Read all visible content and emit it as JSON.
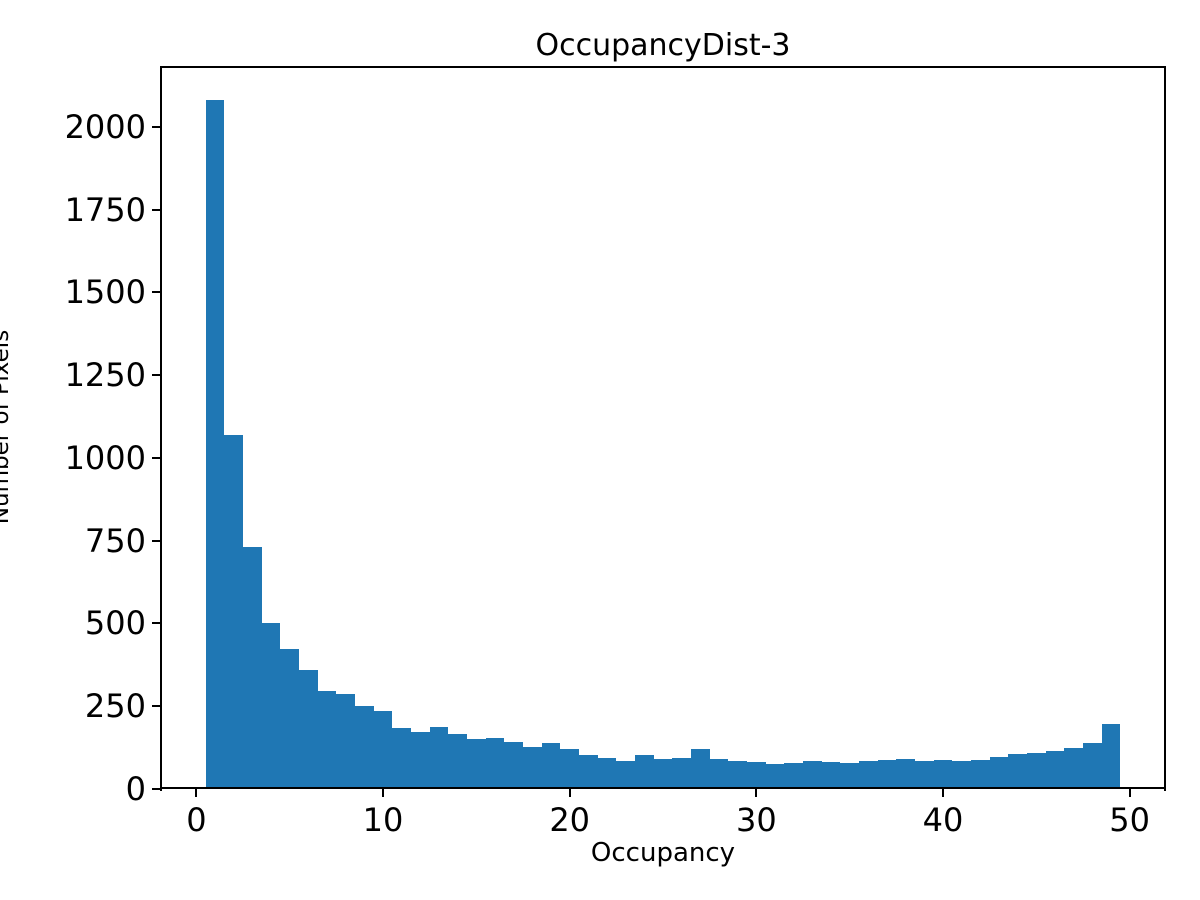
{
  "figure": {
    "background": "#ffffff",
    "text_color": "#000000"
  },
  "chart_data": {
    "type": "bar",
    "subtype": "histogram",
    "title": "OccupancyDist-3",
    "xlabel": "Occupancy",
    "ylabel": "Number of Pixels",
    "bar_color": "#1f77b4",
    "grid": false,
    "legend": null,
    "bins": {
      "start": 0.5,
      "end": 49.5,
      "bin_width": 1,
      "count": 49
    },
    "bin_centers": [
      1,
      2,
      3,
      4,
      5,
      6,
      7,
      8,
      9,
      10,
      11,
      12,
      13,
      14,
      15,
      16,
      17,
      18,
      19,
      20,
      21,
      22,
      23,
      24,
      25,
      26,
      27,
      28,
      29,
      30,
      31,
      32,
      33,
      34,
      35,
      36,
      37,
      38,
      39,
      40,
      41,
      42,
      43,
      44,
      45,
      46,
      47,
      48,
      49
    ],
    "values": [
      2080,
      1070,
      730,
      500,
      423,
      360,
      297,
      288,
      251,
      237,
      184,
      171,
      186,
      166,
      151,
      155,
      141,
      128,
      140,
      120,
      103,
      94,
      85,
      104,
      92,
      95,
      120,
      92,
      85,
      83,
      76,
      78,
      85,
      82,
      78,
      84,
      87,
      92,
      84,
      89,
      84,
      89,
      98,
      105,
      108,
      115,
      123,
      140,
      196
    ],
    "x_ticks": [
      0,
      10,
      20,
      30,
      40,
      50
    ],
    "y_ticks": [
      0,
      250,
      500,
      750,
      1000,
      1250,
      1500,
      1750,
      2000
    ],
    "xlim": [
      -1.95,
      51.95
    ],
    "ylim": [
      0,
      2184
    ]
  }
}
